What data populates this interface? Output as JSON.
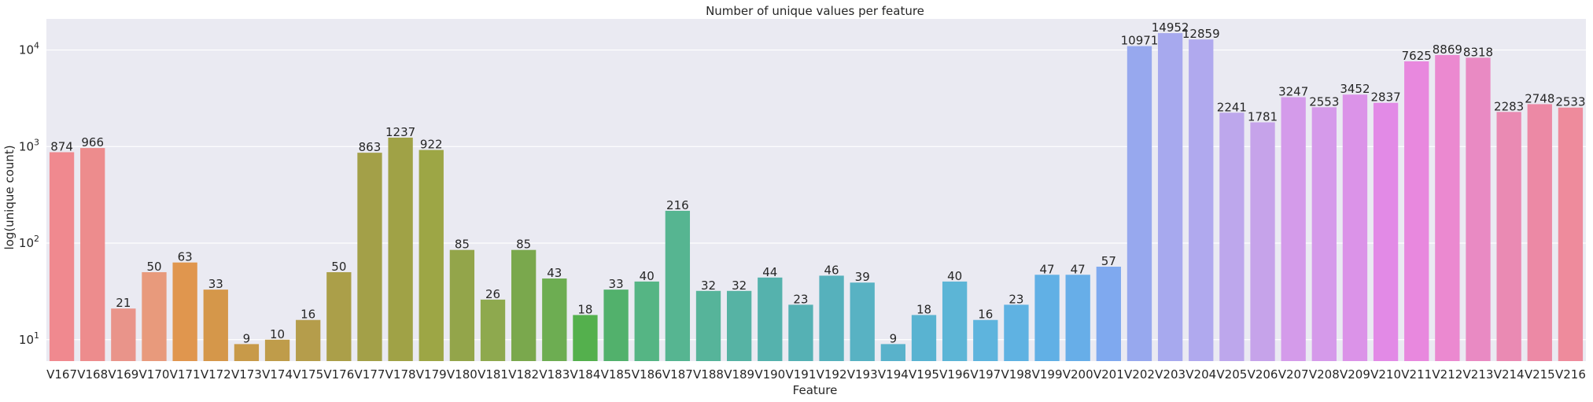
{
  "chart_data": {
    "type": "bar",
    "title": "Number of unique values per feature",
    "xlabel": "Feature",
    "ylabel": "log(unique count)",
    "yscale": "log",
    "ylim": [
      6,
      21000
    ],
    "yticks": [
      10,
      100,
      1000,
      10000
    ],
    "ytick_labels": [
      {
        "base": "10",
        "exp": "1"
      },
      {
        "base": "10",
        "exp": "2"
      },
      {
        "base": "10",
        "exp": "3"
      },
      {
        "base": "10",
        "exp": "4"
      }
    ],
    "grid": true,
    "background": "#eaeaf2",
    "categories": [
      "V167",
      "V168",
      "V169",
      "V170",
      "V171",
      "V172",
      "V173",
      "V174",
      "V175",
      "V176",
      "V177",
      "V178",
      "V179",
      "V180",
      "V181",
      "V182",
      "V183",
      "V184",
      "V185",
      "V186",
      "V187",
      "V188",
      "V189",
      "V190",
      "V191",
      "V192",
      "V193",
      "V194",
      "V195",
      "V196",
      "V197",
      "V198",
      "V199",
      "V200",
      "V201",
      "V202",
      "V203",
      "V204",
      "V205",
      "V206",
      "V207",
      "V208",
      "V209",
      "V210",
      "V211",
      "V212",
      "V213",
      "V214",
      "V215",
      "V216"
    ],
    "values": [
      874,
      966,
      21,
      50,
      63,
      33,
      9,
      10,
      16,
      50,
      863,
      1237,
      922,
      85,
      26,
      85,
      43,
      18,
      33,
      40,
      216,
      32,
      32,
      44,
      23,
      46,
      39,
      9,
      18,
      40,
      16,
      23,
      47,
      47,
      57,
      10971,
      14952,
      12859,
      2241,
      1781,
      3247,
      2553,
      3452,
      2837,
      7625,
      8869,
      8318,
      2283,
      2748,
      2533
    ],
    "value_labels": [
      "874",
      "966",
      "21",
      "50",
      "63",
      "33",
      "9",
      "10",
      "16",
      "50",
      "863",
      "1237",
      "922",
      "85",
      "26",
      "85",
      "43",
      "18",
      "33",
      "40",
      "216",
      "32",
      "32",
      "44",
      "23",
      "46",
      "39",
      "9",
      "18",
      "40",
      "16",
      "23",
      "47",
      "47",
      "57",
      "10971",
      "14952",
      "12859",
      "2241",
      "1781",
      "3247",
      "2553",
      "3452",
      "2837",
      "7625",
      "8869",
      "8318",
      "2283",
      "2748",
      "2533"
    ],
    "colors": [
      "#f0898f",
      "#ed8c8d",
      "#e9948a",
      "#e89a7c",
      "#e0964e",
      "#d5974a",
      "#c89a49",
      "#bf9c4a",
      "#b59d4b",
      "#ab9f49",
      "#a3a048",
      "#a0a246",
      "#9da645",
      "#93a54a",
      "#8ea94e",
      "#7aa84d",
      "#6dad52",
      "#54b04d",
      "#52b16c",
      "#55b584",
      "#56b591",
      "#56b49a",
      "#56b3a4",
      "#55b2ad",
      "#55b1b4",
      "#56b1bc",
      "#58b2c3",
      "#59b2cb",
      "#59b3d1",
      "#5cb5d6",
      "#5eb4dd",
      "#5fb2e2",
      "#61b0e5",
      "#67aee8",
      "#7fa9ef",
      "#97a8ee",
      "#a7a9ee",
      "#b0a9ee",
      "#bda7ec",
      "#c6a3ea",
      "#d49bea",
      "#d59aea",
      "#db93e8",
      "#e28ae6",
      "#e888de",
      "#eb89d0",
      "#e98ac3",
      "#ea8ab3",
      "#ec89a5",
      "#ee8b9c"
    ]
  }
}
